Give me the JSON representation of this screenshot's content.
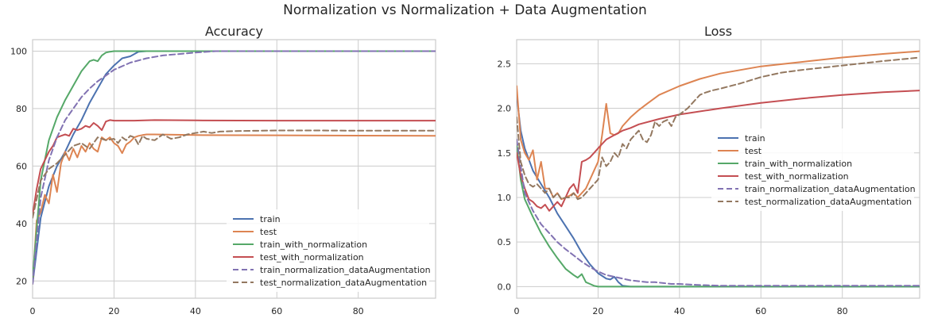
{
  "figure": {
    "suptitle": "Normalization vs Normalization + Data Augmentation"
  },
  "chart_data": [
    {
      "type": "line",
      "title": "Accuracy",
      "xlabel": "",
      "ylabel": "",
      "xlim": [
        0,
        99
      ],
      "ylim": [
        14,
        104
      ],
      "xticks": [
        0,
        20,
        40,
        60,
        80
      ],
      "yticks": [
        20,
        40,
        60,
        80,
        100
      ],
      "grid": true,
      "legend_position": "lower right",
      "series": [
        {
          "name": "train",
          "color": "#4c72b0",
          "dash": "solid",
          "x": [
            0,
            2,
            4,
            6,
            8,
            10,
            12,
            14,
            16,
            18,
            20,
            22,
            24,
            26,
            28,
            30,
            40,
            60,
            80,
            99
          ],
          "y": [
            19,
            42,
            53,
            60,
            65,
            71,
            76,
            82,
            87,
            92,
            95,
            97.5,
            98.2,
            99.8,
            100,
            100,
            100,
            100,
            100,
            100
          ]
        },
        {
          "name": "test",
          "color": "#dd8452",
          "dash": "solid",
          "x": [
            0,
            1,
            2,
            3,
            4,
            5,
            6,
            7,
            8,
            9,
            10,
            11,
            12,
            13,
            14,
            15,
            16,
            17,
            18,
            19,
            20,
            21,
            22,
            23,
            24,
            25,
            26,
            27,
            28,
            30,
            40,
            60,
            80,
            99
          ],
          "y": [
            19,
            41,
            44,
            50,
            47,
            57,
            51,
            61,
            65,
            62,
            66,
            63,
            67,
            65,
            68,
            66,
            65,
            70,
            69,
            70,
            68,
            67,
            64.5,
            67.5,
            68.5,
            70,
            70.5,
            70.8,
            71,
            71,
            70.8,
            70.7,
            70.6,
            70.5
          ]
        },
        {
          "name": "train_with_normalization",
          "color": "#55a868",
          "dash": "solid",
          "x": [
            0,
            2,
            4,
            6,
            8,
            10,
            12,
            14,
            15,
            16,
            17,
            18,
            19,
            20,
            22,
            25,
            30,
            40,
            60,
            80,
            99
          ],
          "y": [
            21,
            55,
            69,
            77,
            83,
            88,
            93,
            96.5,
            97,
            96.5,
            98.5,
            99.5,
            99.8,
            100,
            100,
            100,
            100,
            100,
            100,
            100,
            100
          ]
        },
        {
          "name": "test_with_normalization",
          "color": "#c44e52",
          "dash": "solid",
          "x": [
            0,
            1,
            2,
            3,
            4,
            5,
            6,
            7,
            8,
            9,
            10,
            11,
            12,
            13,
            14,
            15,
            16,
            17,
            18,
            19,
            20,
            25,
            30,
            40,
            60,
            80,
            99
          ],
          "y": [
            43,
            52,
            59,
            62,
            65,
            67,
            70,
            70.5,
            71,
            70.5,
            73,
            72.5,
            73,
            74,
            73.5,
            75,
            74,
            72.5,
            75.5,
            76,
            75.8,
            75.8,
            76,
            75.9,
            75.8,
            75.8,
            75.8
          ]
        },
        {
          "name": "train_normalization_dataAugmentation",
          "color": "#8172b2",
          "dash": "dashed",
          "x": [
            0,
            2,
            4,
            6,
            8,
            10,
            12,
            14,
            16,
            18,
            20,
            24,
            28,
            32,
            36,
            40,
            45,
            60,
            80,
            99
          ],
          "y": [
            19,
            49,
            62,
            70,
            76,
            80,
            84,
            87,
            89.5,
            91.5,
            93.5,
            96,
            97.5,
            98.5,
            99,
            99.5,
            100,
            100,
            100,
            100
          ]
        },
        {
          "name": "test_normalization_dataAugmentation",
          "color": "#937860",
          "dash": "dashed",
          "x": [
            0,
            2,
            4,
            6,
            8,
            10,
            12,
            14,
            16,
            18,
            20,
            21,
            22,
            23,
            24,
            25,
            26,
            27,
            28,
            30,
            32,
            34,
            36,
            38,
            40,
            42,
            44,
            46,
            50,
            60,
            70,
            80,
            99
          ],
          "y": [
            42,
            55,
            59,
            61,
            64,
            67,
            68,
            66,
            70,
            69,
            69.5,
            68,
            70,
            69,
            70.5,
            70,
            67.5,
            70.5,
            69.5,
            69,
            71,
            69.5,
            70,
            71,
            71.5,
            72,
            71.5,
            72,
            72.2,
            72.4,
            72.4,
            72.3,
            72.3
          ]
        }
      ]
    },
    {
      "type": "line",
      "title": "Loss",
      "xlabel": "",
      "ylabel": "",
      "xlim": [
        0,
        99
      ],
      "ylim": [
        -0.13,
        2.77
      ],
      "xticks": [
        0,
        20,
        40,
        60,
        80
      ],
      "yticks": [
        0.0,
        0.5,
        1.0,
        1.5,
        2.0,
        2.5
      ],
      "ytick_labels": [
        "0.0",
        "0.5",
        "1.0",
        "1.5",
        "2.0",
        "2.5"
      ],
      "grid": true,
      "legend_position": "center right",
      "series": [
        {
          "name": "train",
          "color": "#4c72b0",
          "dash": "solid",
          "x": [
            0,
            1,
            2,
            4,
            6,
            8,
            10,
            12,
            14,
            16,
            18,
            20,
            22,
            23,
            24,
            25,
            26,
            28,
            40,
            60,
            80,
            99
          ],
          "y": [
            2.15,
            1.75,
            1.55,
            1.3,
            1.15,
            1.0,
            0.82,
            0.68,
            0.54,
            0.38,
            0.25,
            0.15,
            0.09,
            0.08,
            0.11,
            0.05,
            0.01,
            0.0,
            0.0,
            0.0,
            0.0,
            0.0
          ]
        },
        {
          "name": "test",
          "color": "#dd8452",
          "dash": "solid",
          "x": [
            0,
            1,
            2,
            3,
            4,
            5,
            6,
            7,
            8,
            9,
            10,
            11,
            12,
            13,
            14,
            15,
            16,
            17,
            18,
            19,
            20,
            21,
            22,
            23,
            24,
            25,
            26,
            28,
            30,
            32,
            35,
            40,
            45,
            50,
            60,
            70,
            80,
            90,
            99
          ],
          "y": [
            2.25,
            1.65,
            1.5,
            1.42,
            1.53,
            1.2,
            1.4,
            1.1,
            1.1,
            1.0,
            1.05,
            0.98,
            1.0,
            1.02,
            1.05,
            1.0,
            1.05,
            1.1,
            1.2,
            1.3,
            1.4,
            1.7,
            2.05,
            1.72,
            1.7,
            1.72,
            1.8,
            1.9,
            1.98,
            2.05,
            2.15,
            2.25,
            2.33,
            2.39,
            2.47,
            2.52,
            2.57,
            2.61,
            2.64
          ]
        },
        {
          "name": "train_with_normalization",
          "color": "#55a868",
          "dash": "solid",
          "x": [
            0,
            1,
            2,
            4,
            6,
            8,
            10,
            12,
            14,
            15,
            16,
            17,
            18,
            19,
            20,
            22,
            25,
            30,
            40,
            60,
            80,
            99
          ],
          "y": [
            1.6,
            1.2,
            0.98,
            0.78,
            0.6,
            0.45,
            0.32,
            0.2,
            0.13,
            0.1,
            0.14,
            0.05,
            0.03,
            0.01,
            0.0,
            0.0,
            0.0,
            0.0,
            0.0,
            0.0,
            0.0,
            0.0
          ]
        },
        {
          "name": "test_with_normalization",
          "color": "#c44e52",
          "dash": "solid",
          "x": [
            0,
            1,
            2,
            3,
            4,
            5,
            6,
            7,
            8,
            9,
            10,
            11,
            12,
            13,
            14,
            15,
            16,
            17,
            18,
            19,
            20,
            21,
            22,
            24,
            26,
            28,
            30,
            35,
            40,
            50,
            60,
            70,
            80,
            90,
            99
          ],
          "y": [
            1.5,
            1.25,
            1.1,
            0.98,
            0.95,
            0.9,
            0.88,
            0.92,
            0.85,
            0.9,
            0.95,
            0.9,
            1.0,
            1.1,
            1.15,
            1.05,
            1.4,
            1.42,
            1.45,
            1.5,
            1.55,
            1.6,
            1.65,
            1.7,
            1.75,
            1.78,
            1.82,
            1.88,
            1.93,
            2.0,
            2.06,
            2.11,
            2.15,
            2.18,
            2.2
          ]
        },
        {
          "name": "train_normalization_dataAugmentation",
          "color": "#8172b2",
          "dash": "dashed",
          "x": [
            0,
            2,
            4,
            6,
            8,
            10,
            12,
            14,
            16,
            18,
            20,
            22,
            24,
            26,
            28,
            30,
            32,
            34,
            36,
            38,
            40,
            44,
            50,
            60,
            80,
            99
          ],
          "y": [
            1.65,
            1.05,
            0.85,
            0.7,
            0.6,
            0.5,
            0.42,
            0.35,
            0.28,
            0.22,
            0.17,
            0.13,
            0.11,
            0.09,
            0.07,
            0.06,
            0.05,
            0.05,
            0.04,
            0.03,
            0.03,
            0.02,
            0.01,
            0.01,
            0.01,
            0.01
          ]
        },
        {
          "name": "test_normalization_dataAugmentation",
          "color": "#937860",
          "dash": "dashed",
          "x": [
            0,
            1,
            2,
            3,
            4,
            5,
            6,
            7,
            8,
            9,
            10,
            11,
            12,
            13,
            14,
            15,
            16,
            17,
            18,
            19,
            20,
            21,
            22,
            23,
            24,
            25,
            26,
            27,
            28,
            29,
            30,
            31,
            32,
            33,
            34,
            35,
            36,
            37,
            38,
            39,
            40,
            42,
            44,
            45,
            46,
            48,
            50,
            55,
            60,
            65,
            70,
            80,
            90,
            99
          ],
          "y": [
            1.9,
            1.4,
            1.25,
            1.15,
            1.12,
            1.15,
            1.1,
            1.05,
            1.1,
            1.0,
            1.05,
            0.98,
            1.0,
            1.0,
            1.05,
            0.98,
            1.0,
            1.05,
            1.1,
            1.15,
            1.2,
            1.45,
            1.35,
            1.4,
            1.5,
            1.45,
            1.6,
            1.55,
            1.65,
            1.7,
            1.75,
            1.65,
            1.62,
            1.7,
            1.85,
            1.8,
            1.85,
            1.87,
            1.8,
            1.9,
            1.93,
            2.0,
            2.1,
            2.15,
            2.17,
            2.2,
            2.22,
            2.28,
            2.35,
            2.4,
            2.43,
            2.48,
            2.53,
            2.57
          ]
        }
      ]
    }
  ]
}
